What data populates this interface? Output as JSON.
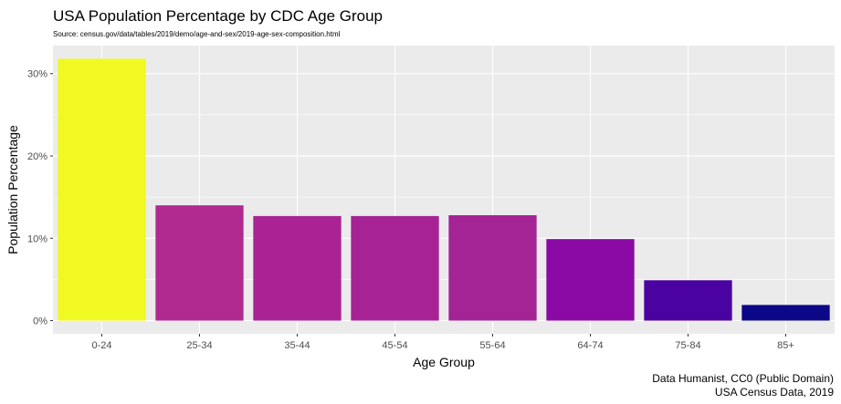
{
  "chart_data": {
    "type": "bar",
    "title": "USA Population Percentage by CDC Age Group",
    "subtitle": "Source: census.gov/data/tables/2019/demo/age-and-sex/2019-age-sex-composition.html",
    "xlabel": "Age Group",
    "ylabel": "Population Percentage",
    "categories": [
      "0-24",
      "25-34",
      "35-44",
      "45-54",
      "55-64",
      "64-74",
      "75-84",
      "85+"
    ],
    "values": [
      31.8,
      14.0,
      12.7,
      12.7,
      12.8,
      9.9,
      4.9,
      1.9
    ],
    "ylim": [
      -1.6,
      33.4
    ],
    "yticks": [
      0,
      10,
      20,
      30
    ],
    "ytick_labels": [
      "0%",
      "10%",
      "20%",
      "30%"
    ],
    "colors": [
      "#F0F921",
      "#B12A90",
      "#A92394",
      "#A72395",
      "#A42395",
      "#8B0AA5",
      "#4A02A0",
      "#0D0887"
    ],
    "grid": true,
    "legend": "none",
    "caption_lines": [
      "Data Humanist, CC0 (Public Domain)",
      "USA Census Data, 2019"
    ]
  }
}
